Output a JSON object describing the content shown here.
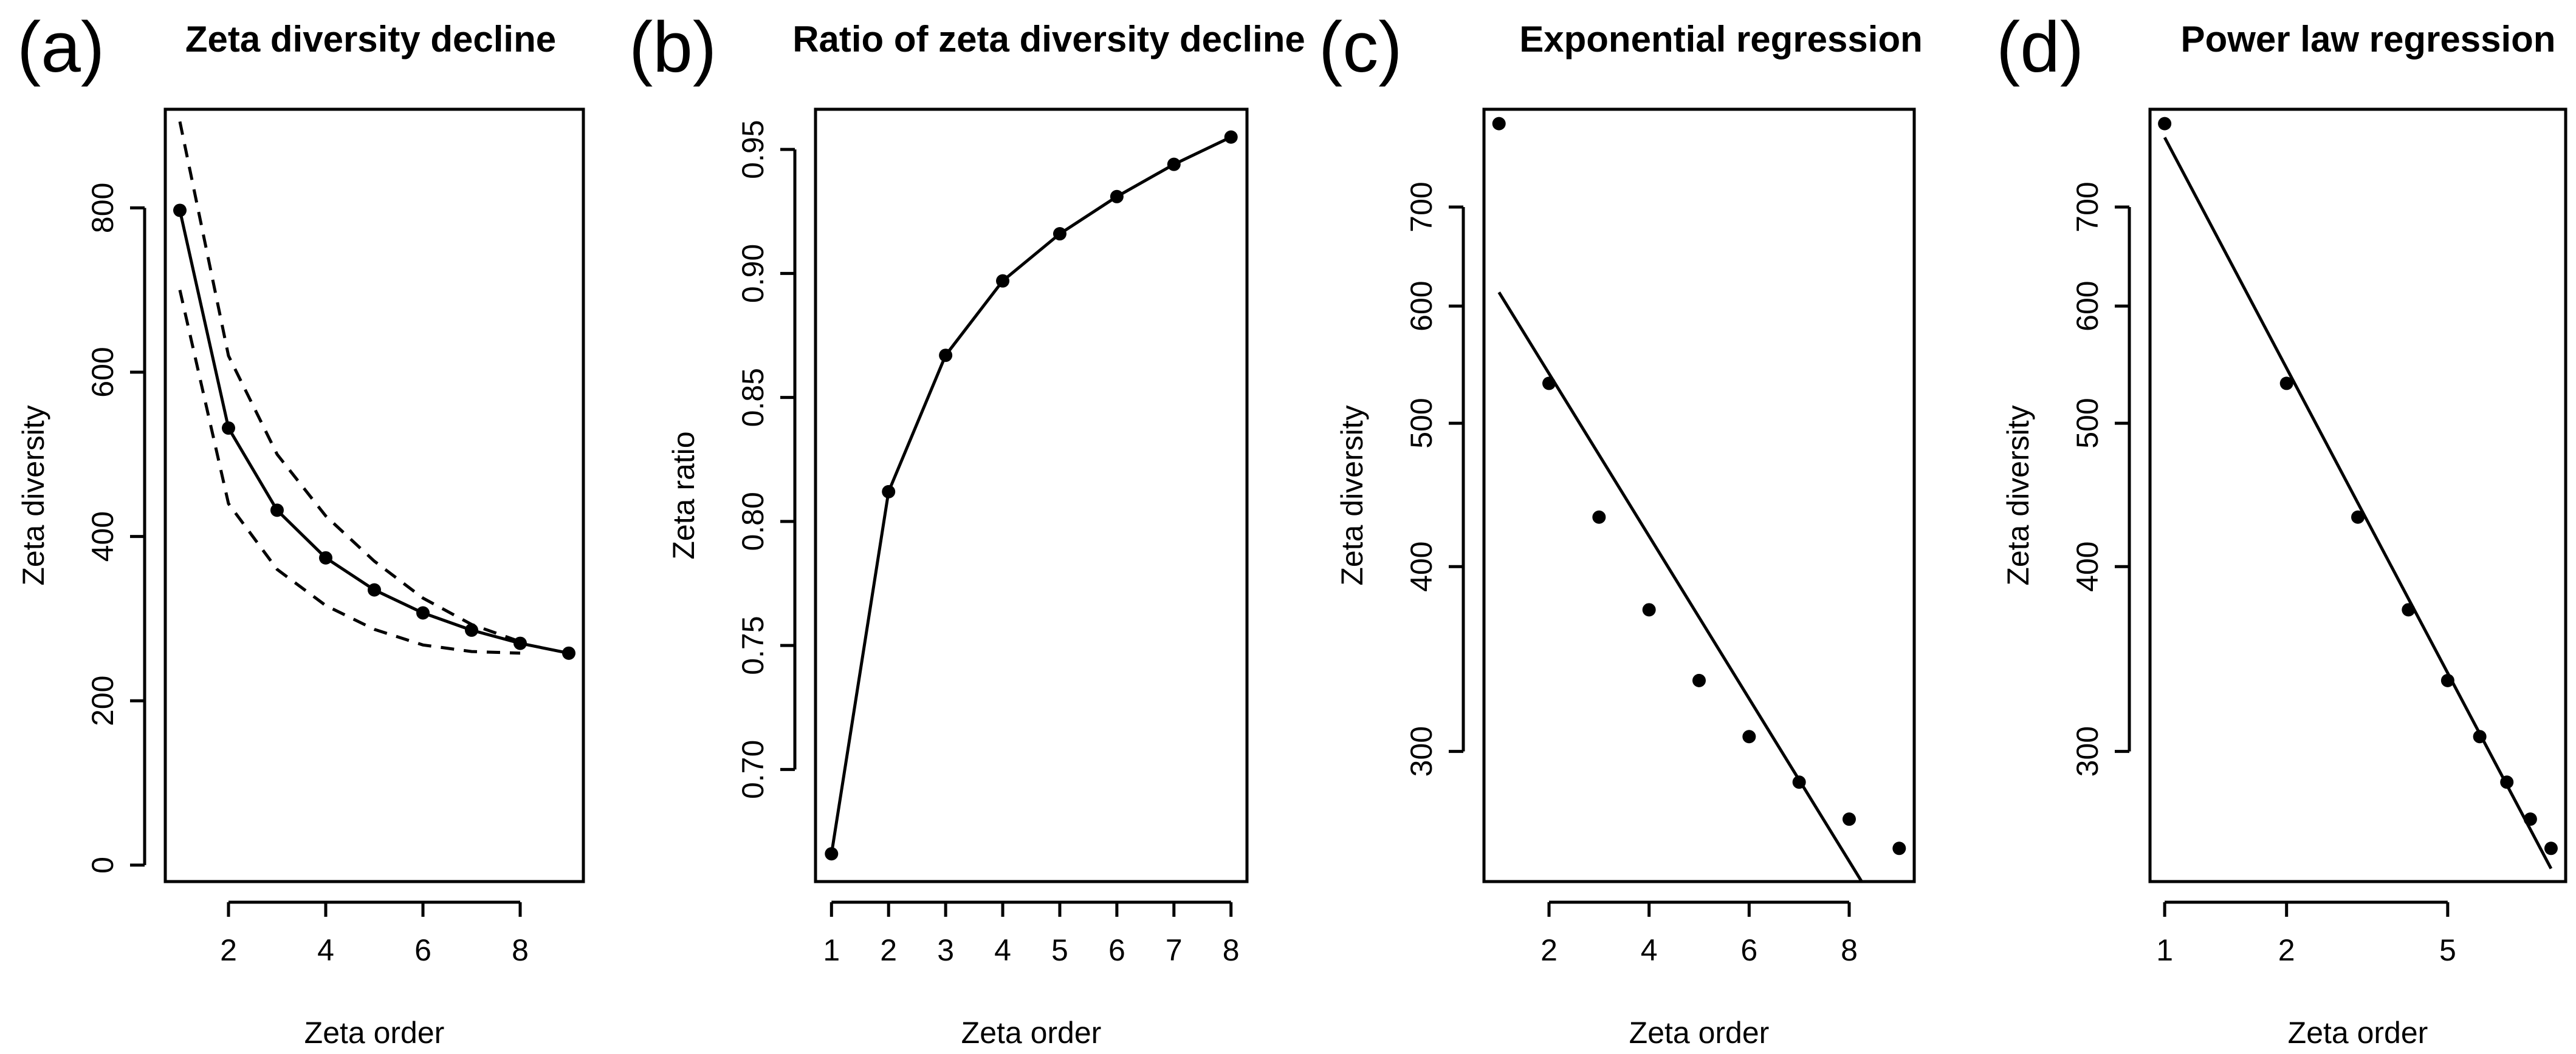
{
  "chart_data": [
    {
      "id": "a",
      "panel_label": "(a)",
      "title": "Zeta diversity decline",
      "type": "line",
      "xlabel": "Zeta order",
      "ylabel": "Zeta diversity",
      "xlim": [
        0.7,
        9.3
      ],
      "ylim": [
        -20,
        920
      ],
      "x_scale": "linear",
      "y_scale": "linear",
      "xticks": [
        2,
        4,
        6,
        8
      ],
      "xtick_labels": [
        "2",
        "4",
        "6",
        "8"
      ],
      "yticks": [
        0,
        200,
        400,
        600,
        800
      ],
      "ytick_labels": [
        "0",
        "200",
        "400",
        "600",
        "800"
      ],
      "series": [
        {
          "name": "zeta diversity",
          "style": "line-points",
          "x": [
            1,
            2,
            3,
            4,
            5,
            6,
            7,
            8,
            9
          ],
          "y": [
            797,
            532,
            432,
            374,
            335,
            307,
            286,
            270,
            258
          ]
        },
        {
          "name": "upper bound",
          "style": "dashed",
          "x": [
            1,
            2,
            3,
            4,
            5,
            6,
            7,
            8
          ],
          "y": [
            905,
            620,
            500,
            425,
            370,
            325,
            293,
            272
          ]
        },
        {
          "name": "lower bound",
          "style": "dashed",
          "x": [
            1,
            2,
            3,
            4,
            5,
            6,
            7,
            8
          ],
          "y": [
            700,
            440,
            360,
            316,
            287,
            268,
            260,
            258
          ]
        }
      ]
    },
    {
      "id": "b",
      "panel_label": "(b)",
      "title": "Ratio of zeta diversity decline",
      "type": "line",
      "xlabel": "Zeta order",
      "ylabel": "Zeta ratio",
      "xlim": [
        0.72,
        8.28
      ],
      "ylim": [
        0.6548,
        0.9662
      ],
      "x_scale": "linear",
      "y_scale": "linear",
      "xticks": [
        1,
        2,
        3,
        4,
        5,
        6,
        7,
        8
      ],
      "xtick_labels": [
        "1",
        "2",
        "3",
        "4",
        "5",
        "6",
        "7",
        "8"
      ],
      "yticks": [
        0.7,
        0.75,
        0.8,
        0.85,
        0.9,
        0.95
      ],
      "ytick_labels": [
        "0.70",
        "0.75",
        "0.80",
        "0.85",
        "0.90",
        "0.95"
      ],
      "series": [
        {
          "name": "zeta ratio",
          "style": "line-points",
          "x": [
            1,
            2,
            3,
            4,
            5,
            6,
            7,
            8
          ],
          "y": [
            0.666,
            0.812,
            0.867,
            0.897,
            0.916,
            0.931,
            0.944,
            0.955
          ]
        }
      ]
    },
    {
      "id": "c",
      "panel_label": "(c)",
      "title": "Exponential regression",
      "type": "scatter",
      "xlabel": "Zeta order",
      "ylabel": "Zeta diversity",
      "xlim": [
        0.7,
        9.3
      ],
      "ylim": [
        245,
        815
      ],
      "x_scale": "linear",
      "y_scale": "log",
      "xticks": [
        2,
        4,
        6,
        8
      ],
      "xtick_labels": [
        "2",
        "4",
        "6",
        "8"
      ],
      "yticks": [
        300,
        400,
        500,
        600,
        700
      ],
      "ytick_labels": [
        "300",
        "400",
        "500",
        "600",
        "700"
      ],
      "series": [
        {
          "name": "zeta diversity",
          "style": "points",
          "x": [
            1,
            2,
            3,
            4,
            5,
            6,
            7,
            8,
            9
          ],
          "y": [
            797,
            532,
            432,
            374,
            335,
            307,
            286,
            270,
            258
          ]
        },
        {
          "name": "exponential fit",
          "style": "fit-line",
          "x": [
            1,
            8.25
          ],
          "y": [
            613,
            245
          ]
        }
      ]
    },
    {
      "id": "d",
      "panel_label": "(d)",
      "title": "Power law regression",
      "type": "scatter",
      "xlabel": "Zeta order",
      "ylabel": "Zeta diversity",
      "xlim": [
        0.92,
        9.78
      ],
      "ylim": [
        245,
        815
      ],
      "x_scale": "log",
      "y_scale": "log",
      "xticks": [
        1,
        2,
        5
      ],
      "xtick_labels": [
        "1",
        "2",
        "5"
      ],
      "yticks": [
        300,
        400,
        500,
        600,
        700
      ],
      "ytick_labels": [
        "300",
        "400",
        "500",
        "600",
        "700"
      ],
      "series": [
        {
          "name": "zeta diversity",
          "style": "points",
          "x": [
            1,
            2,
            3,
            4,
            5,
            6,
            7,
            8,
            9
          ],
          "y": [
            797,
            532,
            432,
            374,
            335,
            307,
            286,
            270,
            258
          ]
        },
        {
          "name": "power law fit",
          "style": "fit-line",
          "x": [
            1,
            9
          ],
          "y": [
            780,
            250
          ]
        }
      ]
    }
  ]
}
